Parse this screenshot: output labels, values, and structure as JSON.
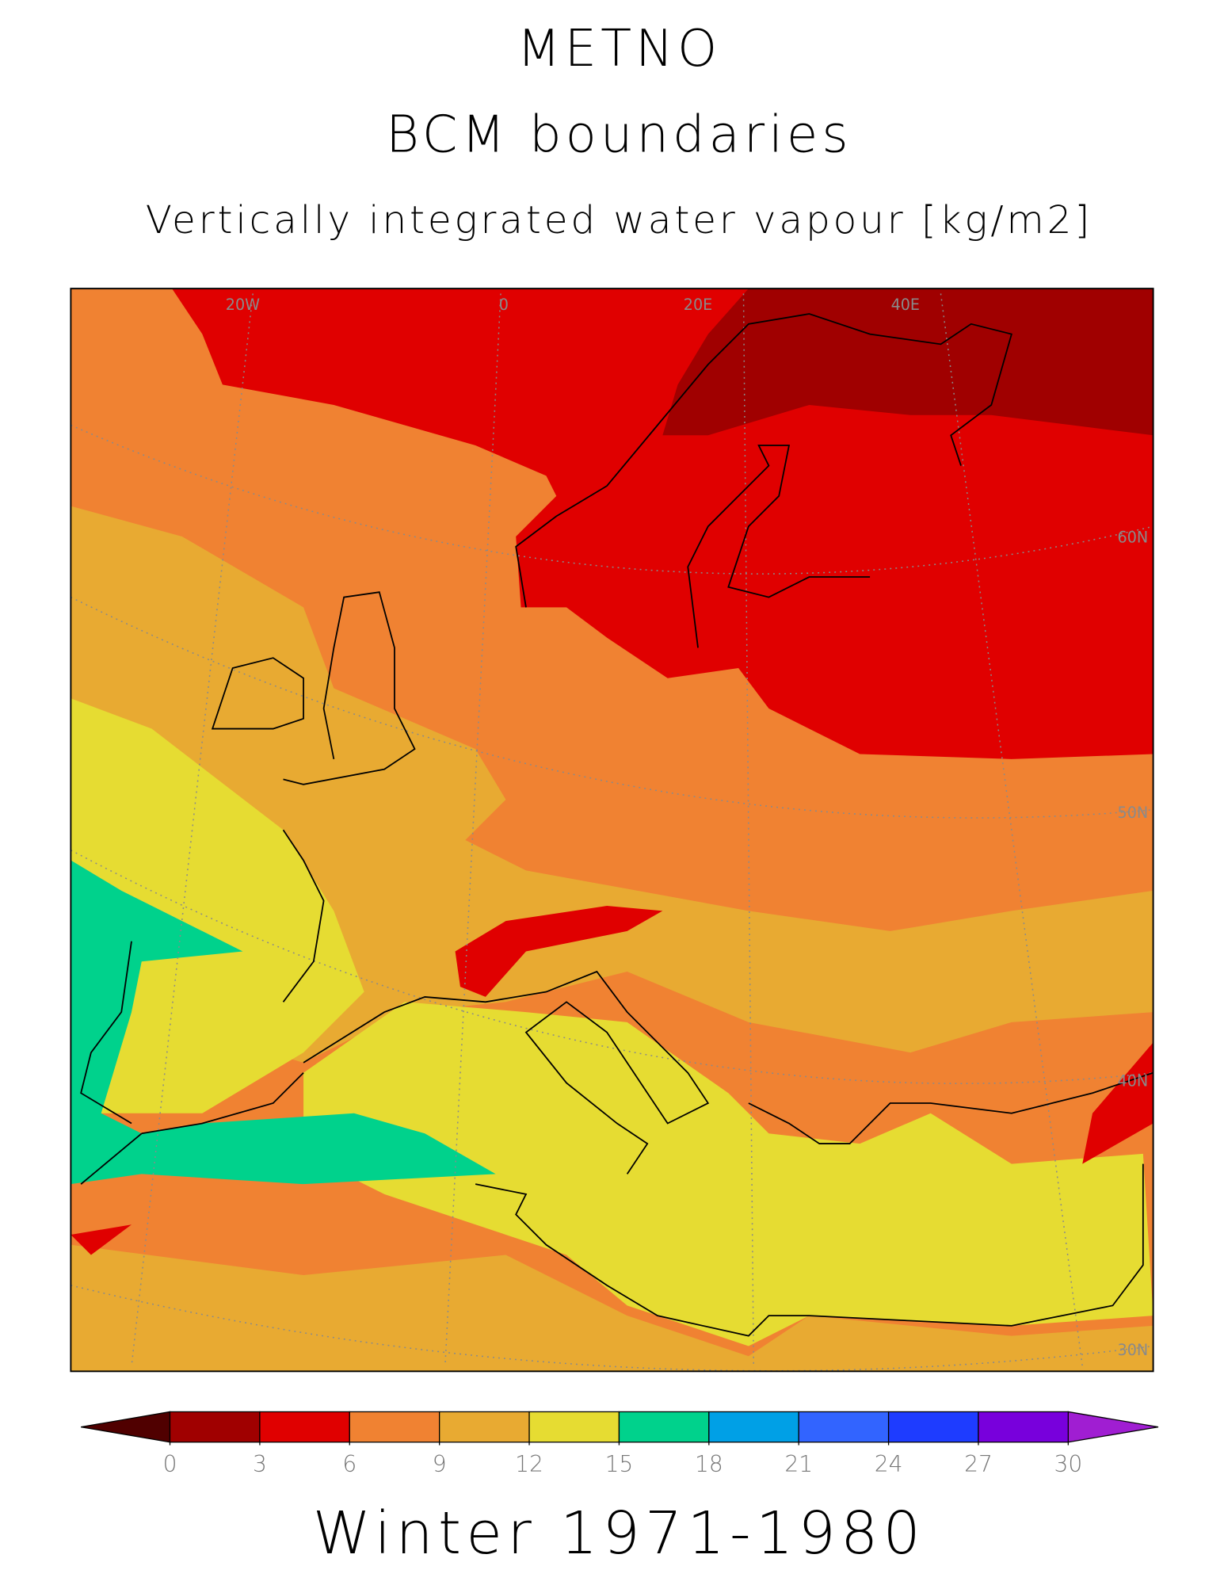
{
  "header": {
    "title": "METNO",
    "subtitle": "BCM boundaries",
    "variable": "Vertically integrated water vapour [kg/m2]"
  },
  "map": {
    "longitude_labels": [
      "20W",
      "0",
      "20E",
      "40E"
    ],
    "latitude_labels": [
      "60N",
      "50N",
      "40N",
      "30N"
    ]
  },
  "colorbar": {
    "ticks": [
      0,
      3,
      6,
      9,
      12,
      15,
      18,
      21,
      24,
      27,
      30
    ],
    "colors": [
      "#a00000",
      "#e00000",
      "#f08232",
      "#e8aa32",
      "#e6dc32",
      "#00d28c",
      "#00a0e6",
      "#3264ff",
      "#1e3cff",
      "#7800dc"
    ],
    "under_color": "#500000",
    "over_color": "#a01ed2"
  },
  "footer": "Winter 1971-1980"
}
